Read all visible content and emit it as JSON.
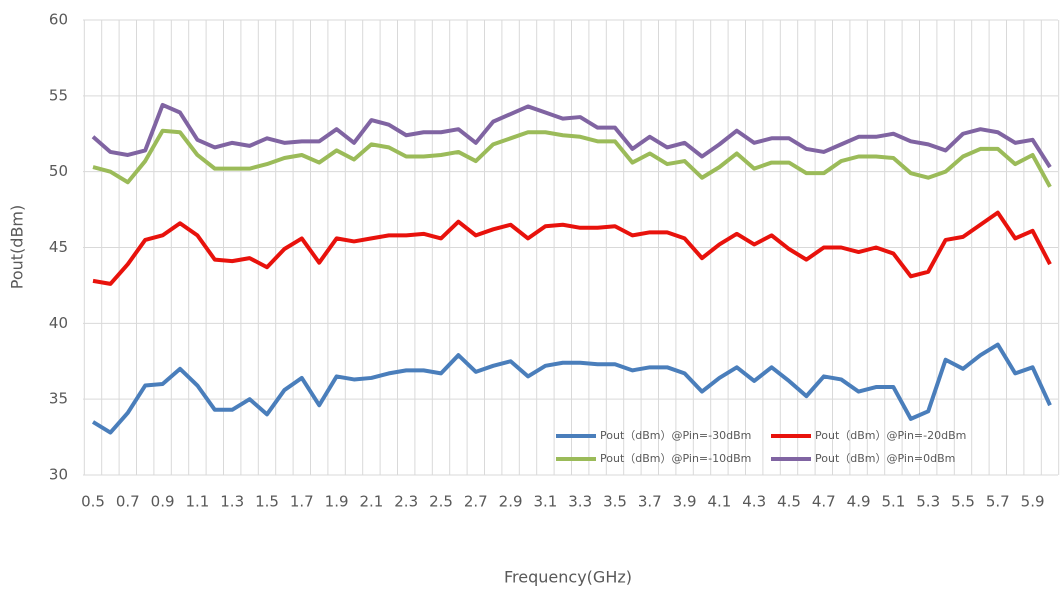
{
  "chart_data": {
    "type": "line",
    "y_label": "Pout(dBm)",
    "x_label": "Frequency(GHz)",
    "categories": [
      "0.5",
      null,
      "0.7",
      null,
      "0.9",
      null,
      "1.1",
      null,
      "1.3",
      null,
      "1.5",
      null,
      "1.7",
      null,
      "1.9",
      null,
      "2.1",
      null,
      "2.3",
      null,
      "2.5",
      null,
      "2.7",
      null,
      "2.9",
      null,
      "3.1",
      null,
      "3.3",
      null,
      "3.5",
      null,
      "3.7",
      null,
      "3.9",
      null,
      "4.1",
      null,
      "4.3",
      null,
      "4.5",
      null,
      "4.7",
      null,
      "4.9",
      null,
      "5.1",
      null,
      "5.3",
      null,
      "5.5",
      null,
      "5.7",
      null,
      "5.9",
      null
    ],
    "ylim": [
      30,
      60
    ],
    "yticks": [
      30,
      35,
      40,
      45,
      50,
      55,
      60
    ],
    "grid": true,
    "legend": "lower-right",
    "series": [
      {
        "name": "Pout（dBm）@Pin=-30dBm",
        "color": "#4a7ebb",
        "values": [
          33.5,
          32.8,
          34.1,
          35.9,
          36.0,
          37.0,
          35.9,
          34.3,
          34.3,
          35.0,
          34.0,
          35.6,
          36.4,
          34.6,
          36.5,
          36.3,
          36.4,
          36.7,
          36.9,
          36.9,
          36.7,
          37.9,
          36.8,
          37.2,
          37.5,
          36.5,
          37.2,
          37.4,
          37.4,
          37.3,
          37.3,
          36.9,
          37.1,
          37.1,
          36.7,
          35.5,
          36.4,
          37.1,
          36.2,
          37.1,
          36.2,
          35.2,
          36.5,
          36.3,
          35.5,
          35.8,
          35.8,
          33.7,
          34.2,
          37.6,
          37.0,
          37.9,
          38.6,
          36.7,
          37.1,
          34.6
        ]
      },
      {
        "name": "Pout（dBm）@Pin=-20dBm",
        "color": "#e8120c",
        "values": [
          42.8,
          42.6,
          43.9,
          45.5,
          45.8,
          46.6,
          45.8,
          44.2,
          44.1,
          44.3,
          43.7,
          44.9,
          45.6,
          44.0,
          45.6,
          45.4,
          45.6,
          45.8,
          45.8,
          45.9,
          45.6,
          46.7,
          45.8,
          46.2,
          46.5,
          45.6,
          46.4,
          46.5,
          46.3,
          46.3,
          46.4,
          45.8,
          46.0,
          46.0,
          45.6,
          44.3,
          45.2,
          45.9,
          45.2,
          45.8,
          44.9,
          44.2,
          45.0,
          45.0,
          44.7,
          45.0,
          44.6,
          43.1,
          43.4,
          45.5,
          45.7,
          46.5,
          47.3,
          45.6,
          46.1,
          43.9
        ]
      },
      {
        "name": "Pout（dBm）@Pin=-10dBm",
        "color": "#9bbb59",
        "values": [
          50.3,
          50.0,
          49.3,
          50.7,
          52.7,
          52.6,
          51.1,
          50.2,
          50.2,
          50.2,
          50.5,
          50.9,
          51.1,
          50.6,
          51.4,
          50.8,
          51.8,
          51.6,
          51.0,
          51.0,
          51.1,
          51.3,
          50.7,
          51.8,
          52.2,
          52.6,
          52.6,
          52.4,
          52.3,
          52.0,
          52.0,
          50.6,
          51.2,
          50.5,
          50.7,
          49.6,
          50.3,
          51.2,
          50.2,
          50.6,
          50.6,
          49.9,
          49.9,
          50.7,
          51.0,
          51.0,
          50.9,
          49.9,
          49.6,
          50.0,
          51.0,
          51.5,
          51.5,
          50.5,
          51.1,
          49.0
        ]
      },
      {
        "name": "Pout（dBm）@Pin=0dBm",
        "color": "#8064a2",
        "values": [
          52.3,
          51.3,
          51.1,
          51.4,
          54.4,
          53.9,
          52.1,
          51.6,
          51.9,
          51.7,
          52.2,
          51.9,
          52.0,
          52.0,
          52.8,
          51.9,
          53.4,
          53.1,
          52.4,
          52.6,
          52.6,
          52.8,
          51.9,
          53.3,
          53.8,
          54.3,
          53.9,
          53.5,
          53.6,
          52.9,
          52.9,
          51.5,
          52.3,
          51.6,
          51.9,
          51.0,
          51.8,
          52.7,
          51.9,
          52.2,
          52.2,
          51.5,
          51.3,
          51.8,
          52.3,
          52.3,
          52.5,
          52.0,
          51.8,
          51.4,
          52.5,
          52.8,
          52.6,
          51.9,
          52.1,
          50.3
        ]
      }
    ]
  }
}
